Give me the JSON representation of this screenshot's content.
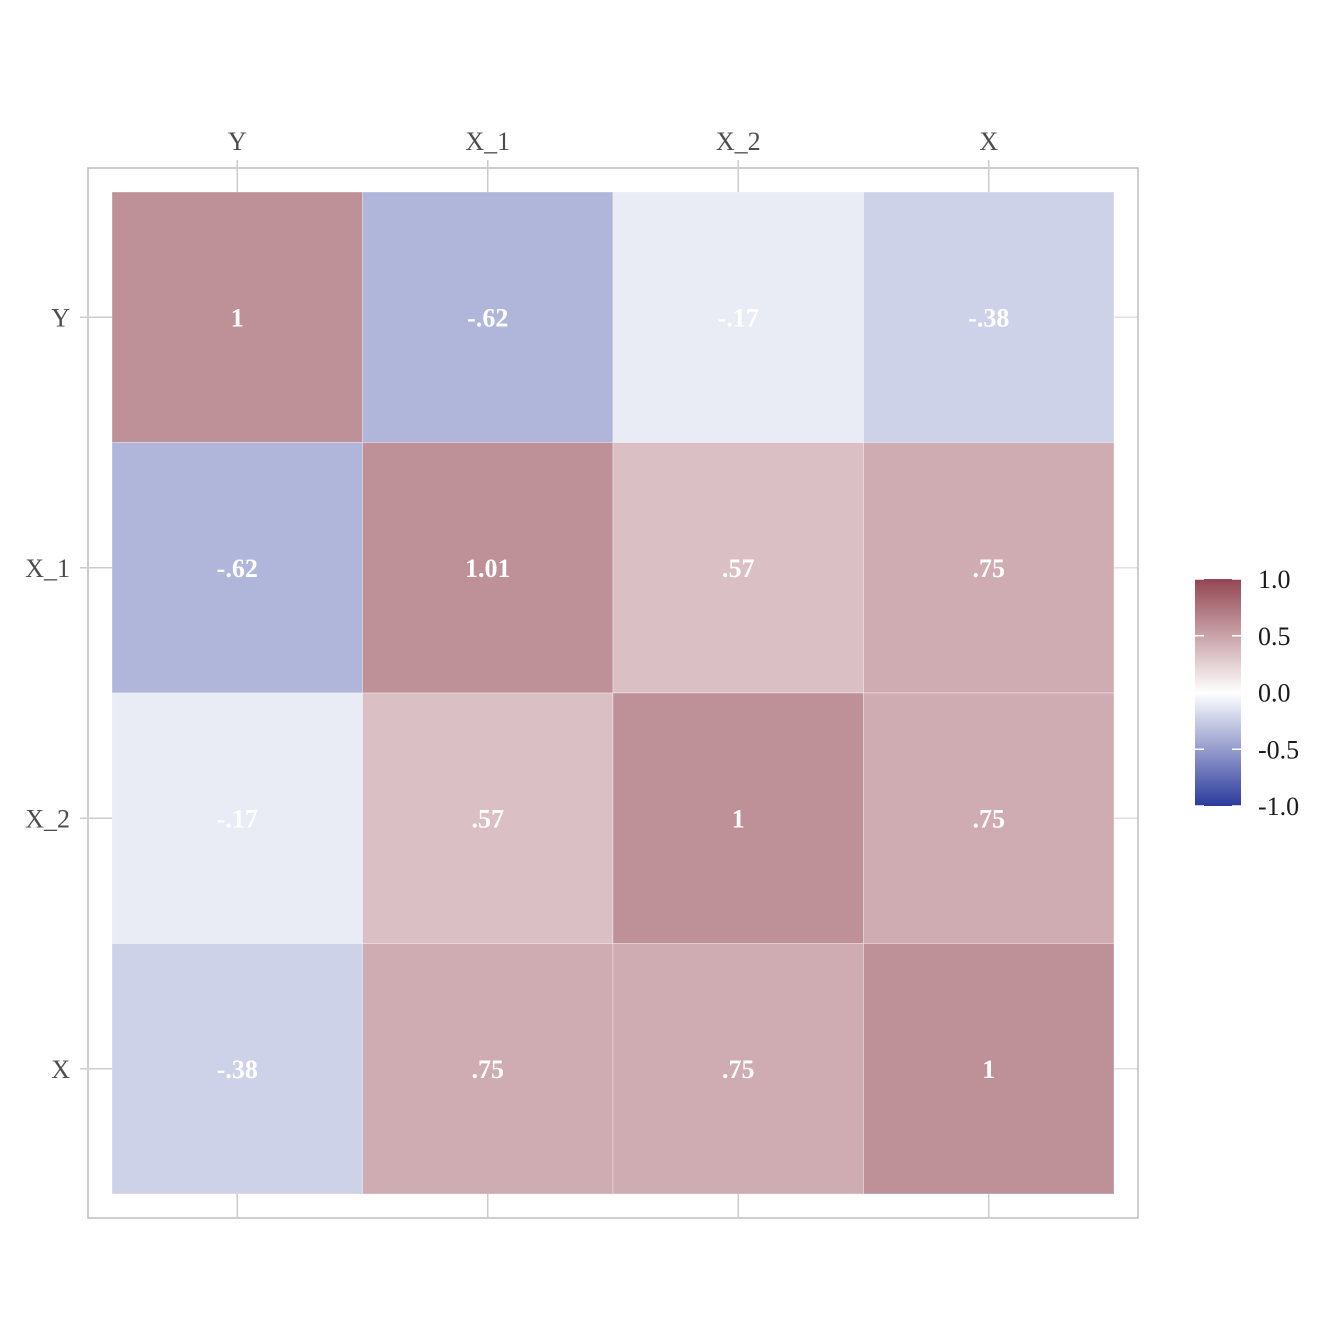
{
  "chart_data": {
    "type": "heatmap",
    "x_categories": [
      "Y",
      "X_1",
      "X_2",
      "X"
    ],
    "y_categories": [
      "Y",
      "X_1",
      "X_2",
      "X"
    ],
    "values": [
      [
        1,
        -0.62,
        -0.17,
        -0.38
      ],
      [
        -0.62,
        1.01,
        0.57,
        0.75
      ],
      [
        -0.17,
        0.57,
        1,
        0.75
      ],
      [
        -0.38,
        0.75,
        0.75,
        1
      ]
    ],
    "labels": [
      [
        "1",
        "-.62",
        "-.17",
        "-.38"
      ],
      [
        "-.62",
        "1.01",
        ".57",
        ".75"
      ],
      [
        "-.17",
        ".57",
        "1",
        ".75"
      ],
      [
        "-.38",
        ".75",
        ".75",
        "1"
      ]
    ],
    "xaxis_position": "top",
    "grid": true,
    "legend": {
      "position": "right",
      "type": "colorbar",
      "range": [
        -1.0,
        1.0
      ],
      "ticks": [
        "1.0",
        "0.5",
        "0.0",
        "-0.5",
        "-1.0"
      ]
    },
    "colors": {
      "low": "#2b3a9b",
      "mid": "#ffffff",
      "high": "#934653",
      "tile_alpha": 0.6,
      "label": "#ffffff",
      "tick_text": "#4d4d4d",
      "grid": "#e0e0e0",
      "frame": "#bdbdbd"
    }
  }
}
